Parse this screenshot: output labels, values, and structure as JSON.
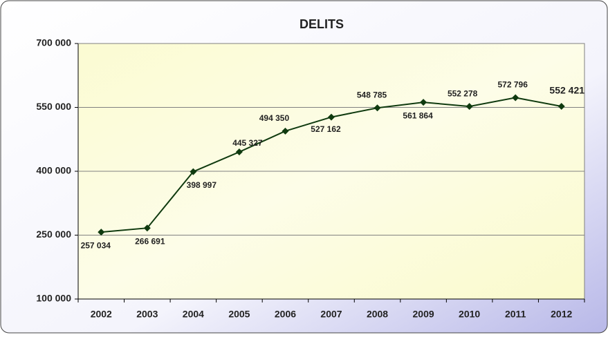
{
  "chart_data": {
    "type": "line",
    "title": "DELITS",
    "categories": [
      "2002",
      "2003",
      "2004",
      "2005",
      "2006",
      "2007",
      "2008",
      "2009",
      "2010",
      "2011",
      "2012"
    ],
    "series": [
      {
        "name": "DELITS",
        "color": "#0f3a0f",
        "values": [
          257034,
          266691,
          398997,
          445327,
          494350,
          527162,
          548785,
          561864,
          552278,
          572796,
          552421
        ],
        "value_labels": [
          "257 034",
          "266 691",
          "398 997",
          "445 327",
          "494 350",
          "527 162",
          "548 785",
          "561 864",
          "552 278",
          "572 796",
          "552 421"
        ]
      }
    ],
    "ylim": [
      100000,
      700000
    ],
    "yticks": [
      {
        "value": 100000,
        "label": "100 000"
      },
      {
        "value": 250000,
        "label": "250 000"
      },
      {
        "value": 400000,
        "label": "400 000"
      },
      {
        "value": 550000,
        "label": "550 000"
      },
      {
        "value": 700000,
        "label": "700 000"
      }
    ],
    "grid": true
  }
}
